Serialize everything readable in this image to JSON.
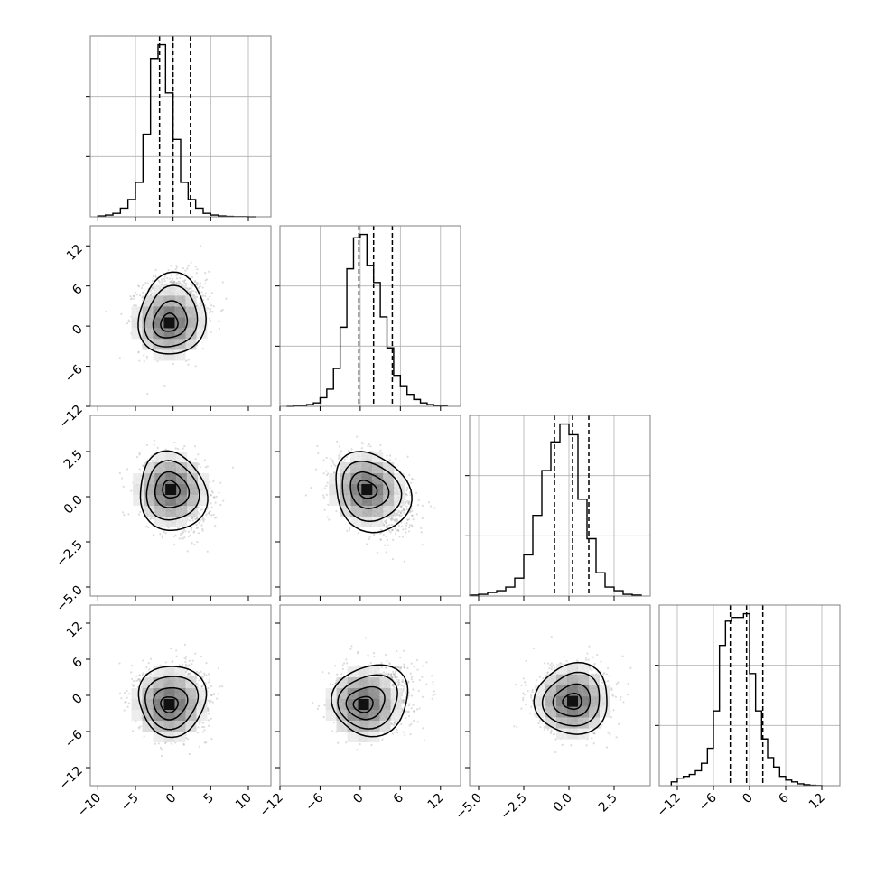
{
  "chart_data": {
    "type": "corner",
    "grid": true,
    "legend": "none",
    "colors": {
      "line": "#000000",
      "grid": "#b0b0b0",
      "points": "#9a9a9a",
      "frame": "#808080"
    },
    "parameters": [
      {
        "index": 0,
        "range": [
          -11,
          13
        ],
        "ticks": [
          -10,
          -5,
          0,
          5,
          10
        ],
        "tick_labels": [
          "−10",
          "−5",
          "0",
          "5",
          "10"
        ],
        "quantiles": [
          -1.8,
          0.0,
          2.3
        ],
        "mean": 0.0,
        "sd": 2.2
      },
      {
        "index": 1,
        "range": [
          -12,
          15
        ],
        "ticks": [
          -12,
          -6,
          0,
          6,
          12
        ],
        "tick_labels": [
          "−12",
          "−6",
          "0",
          "6",
          "12"
        ],
        "quantiles": [
          -0.2,
          2.0,
          4.8
        ],
        "mean": 2.0,
        "sd": 2.8
      },
      {
        "index": 2,
        "range": [
          -5.5,
          4.5
        ],
        "ticks": [
          -5.0,
          -2.5,
          0.0,
          2.5
        ],
        "tick_labels": [
          "−5.0",
          "−2.5",
          "0.0",
          "2.5"
        ],
        "quantiles": [
          -0.8,
          0.2,
          1.1
        ],
        "mean": 0.2,
        "sd": 1.0
      },
      {
        "index": 3,
        "range": [
          -15,
          15
        ],
        "ticks": [
          -12,
          -6,
          0,
          6,
          12
        ],
        "tick_labels": [
          "−12",
          "−6",
          "0",
          "6",
          "12"
        ],
        "quantiles": [
          -3.2,
          -0.5,
          2.2
        ],
        "mean": -0.5,
        "sd": 2.7
      }
    ],
    "histograms": [
      {
        "param": 0,
        "bins": [
          -10.0,
          -9.0,
          -8.0,
          -7.0,
          -6.0,
          -5.0,
          -4.0,
          -3.0,
          -2.0,
          -1.0,
          0.0,
          1.0,
          2.0,
          3.0,
          4.0,
          5.0,
          6.0,
          7.0,
          8.0,
          9.0,
          10.0,
          11.0
        ],
        "counts": [
          0.005,
          0.01,
          0.02,
          0.05,
          0.1,
          0.2,
          0.48,
          0.92,
          1.0,
          0.72,
          0.45,
          0.2,
          0.1,
          0.05,
          0.02,
          0.01,
          0.005,
          0.002,
          0.001,
          0.001,
          0.0
        ]
      },
      {
        "param": 1,
        "bins": [
          -11.0,
          -10.0,
          -9.0,
          -8.0,
          -7.0,
          -6.0,
          -5.0,
          -4.0,
          -3.0,
          -2.0,
          -1.0,
          0.0,
          1.0,
          2.0,
          3.0,
          4.0,
          5.0,
          6.0,
          7.0,
          8.0,
          9.0,
          10.0,
          11.0,
          12.0,
          13.0
        ],
        "counts": [
          0.0,
          0.002,
          0.005,
          0.01,
          0.02,
          0.05,
          0.1,
          0.22,
          0.46,
          0.8,
          0.98,
          1.0,
          0.82,
          0.72,
          0.52,
          0.34,
          0.18,
          0.12,
          0.07,
          0.04,
          0.02,
          0.01,
          0.005,
          0.002
        ]
      },
      {
        "param": 2,
        "bins": [
          -5.5,
          -5.0,
          -4.5,
          -4.0,
          -3.5,
          -3.0,
          -2.5,
          -2.0,
          -1.5,
          -1.0,
          -0.5,
          0.0,
          0.5,
          1.0,
          1.5,
          2.0,
          2.5,
          3.0,
          3.5,
          4.0
        ],
        "counts": [
          0.005,
          0.01,
          0.02,
          0.03,
          0.05,
          0.1,
          0.23,
          0.45,
          0.7,
          0.86,
          0.96,
          0.9,
          0.54,
          0.32,
          0.13,
          0.05,
          0.03,
          0.01,
          0.005
        ]
      },
      {
        "param": 3,
        "bins": [
          -13.0,
          -12.0,
          -11.0,
          -10.0,
          -9.0,
          -8.0,
          -7.0,
          -6.0,
          -5.0,
          -4.0,
          -3.0,
          -2.0,
          -1.0,
          0.0,
          1.0,
          2.0,
          3.0,
          4.0,
          5.0,
          6.0,
          7.0,
          8.0,
          9.0,
          10.0,
          11.0,
          12.0
        ],
        "counts": [
          0.02,
          0.04,
          0.05,
          0.06,
          0.08,
          0.12,
          0.2,
          0.4,
          0.75,
          0.88,
          0.9,
          0.9,
          0.92,
          0.6,
          0.4,
          0.25,
          0.15,
          0.1,
          0.05,
          0.03,
          0.02,
          0.01,
          0.005,
          0.002,
          0.001
        ]
      }
    ],
    "pairs": [
      {
        "x_param": 0,
        "y_param": 1,
        "mode": [
          -0.5,
          0.5
        ],
        "tilt": 0.1
      },
      {
        "x_param": 0,
        "y_param": 2,
        "mode": [
          -0.3,
          0.4
        ],
        "tilt": -0.2
      },
      {
        "x_param": 1,
        "y_param": 2,
        "mode": [
          1.0,
          0.4
        ],
        "tilt": -0.35
      },
      {
        "x_param": 0,
        "y_param": 3,
        "mode": [
          -0.5,
          -1.5
        ],
        "tilt": 0.0
      },
      {
        "x_param": 1,
        "y_param": 3,
        "mode": [
          0.5,
          -1.5
        ],
        "tilt": 0.1
      },
      {
        "x_param": 2,
        "y_param": 3,
        "mode": [
          0.2,
          -1.0
        ],
        "tilt": 0.05
      }
    ]
  }
}
